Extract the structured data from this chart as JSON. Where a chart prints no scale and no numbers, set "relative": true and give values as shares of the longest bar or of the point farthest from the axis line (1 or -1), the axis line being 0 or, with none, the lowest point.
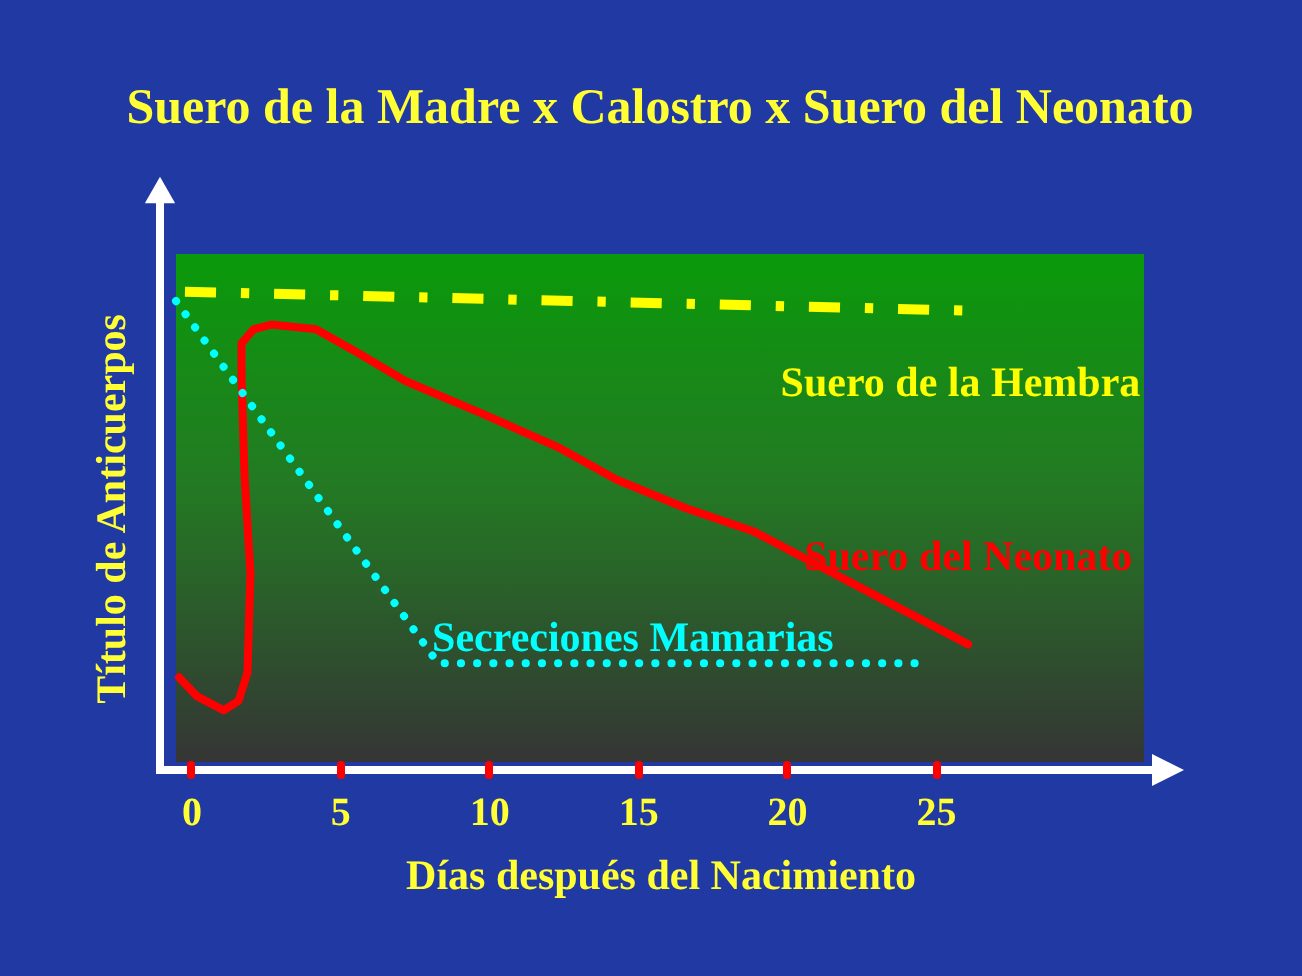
{
  "chart_data": {
    "type": "line",
    "title": "Suero de la Madre x Calostro x Suero del Neonato",
    "xlabel": "Días después del Nacimiento",
    "ylabel": "Título de Anticuerpos",
    "relative": true,
    "xlim": [
      -0.5,
      32
    ],
    "xticks": [
      0,
      5,
      10,
      15,
      20,
      25
    ],
    "grid": false,
    "series": [
      {
        "name": "Suero de la Hembra",
        "color": "#ffff00",
        "line_style": "dashed",
        "x": [
          -0.2,
          25.9
        ],
        "values": [
          1.0,
          0.96
        ]
      },
      {
        "name": "Suero del Neonato",
        "color": "#ff0000",
        "line_style": "solid",
        "x": [
          -0.4,
          0.2,
          1.1,
          1.6,
          1.9,
          2.0,
          1.8,
          1.7,
          1.7,
          2.1,
          2.7,
          4.2,
          5.6,
          7.2,
          9.8,
          12.3,
          14.3,
          16.6,
          18.9,
          26.1
        ],
        "values": [
          0.18,
          0.14,
          0.11,
          0.13,
          0.19,
          0.4,
          0.61,
          0.82,
          0.89,
          0.92,
          0.93,
          0.92,
          0.87,
          0.81,
          0.74,
          0.67,
          0.6,
          0.54,
          0.49,
          0.25
        ]
      },
      {
        "name": "Secreciones Mamarias",
        "color": "#00ffff",
        "line_style": "dotted",
        "x": [
          -0.5,
          8.3,
          24.3
        ],
        "values": [
          0.98,
          0.21,
          0.21
        ]
      }
    ]
  }
}
